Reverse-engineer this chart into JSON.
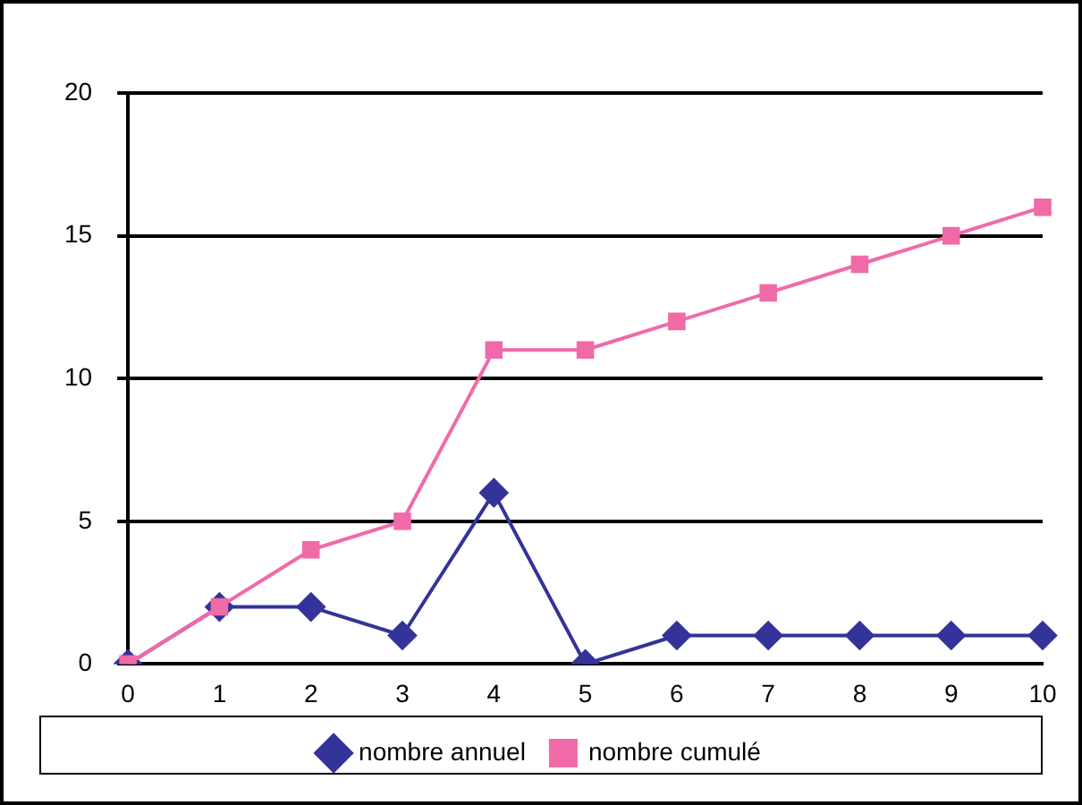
{
  "chart_data": {
    "type": "line",
    "categories": [
      "0",
      "1",
      "2",
      "3",
      "4",
      "5",
      "6",
      "7",
      "8",
      "9",
      "10"
    ],
    "series": [
      {
        "name": "nombre annuel",
        "color": "#333399",
        "marker": "diamond",
        "values": [
          0,
          2,
          2,
          1,
          6,
          0,
          1,
          1,
          1,
          1,
          1
        ]
      },
      {
        "name": "nombre cumulé",
        "color": "#f06aa8",
        "marker": "square",
        "values": [
          0,
          2,
          4,
          5,
          11,
          11,
          12,
          13,
          14,
          15,
          16
        ]
      }
    ],
    "ylim": [
      0,
      20
    ],
    "yticks": [
      0,
      5,
      10,
      15,
      20
    ],
    "grid": "y",
    "legend": "bottom"
  }
}
